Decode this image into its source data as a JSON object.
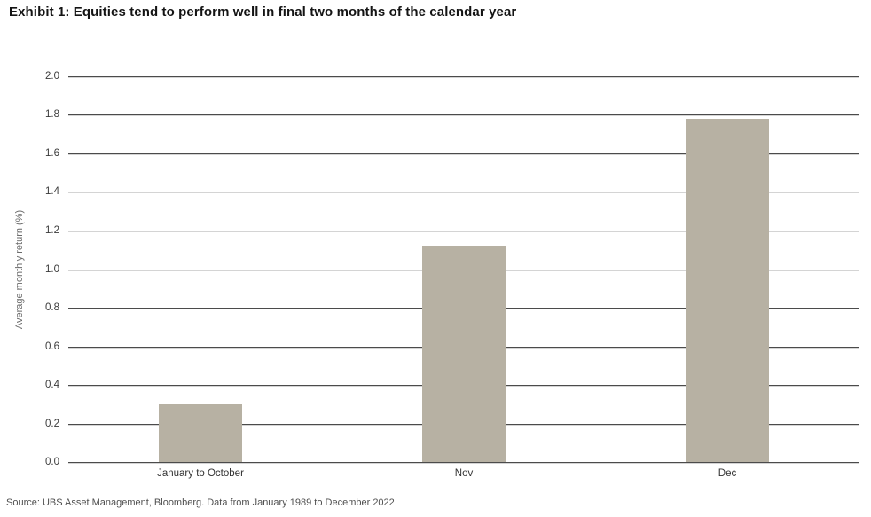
{
  "page": {
    "background": "#ffffff"
  },
  "chart_data": {
    "type": "bar",
    "title": "Exhibit 1: Equities tend to perform well in final two months of the calendar year",
    "categories": [
      "January to October",
      "Nov",
      "Dec"
    ],
    "values": [
      0.3,
      1.12,
      1.78
    ],
    "ylabel": "Average monthly return (%)",
    "xlabel": "",
    "ylim": [
      0,
      2.0
    ],
    "ytick_step": 0.2,
    "grid": "horizontal",
    "legend": "none",
    "bar_color": "#b7b1a3",
    "gridline_color": "#4b4b4b",
    "source": "Source: UBS Asset Management, Bloomberg. Data from January 1989 to December 2022"
  }
}
